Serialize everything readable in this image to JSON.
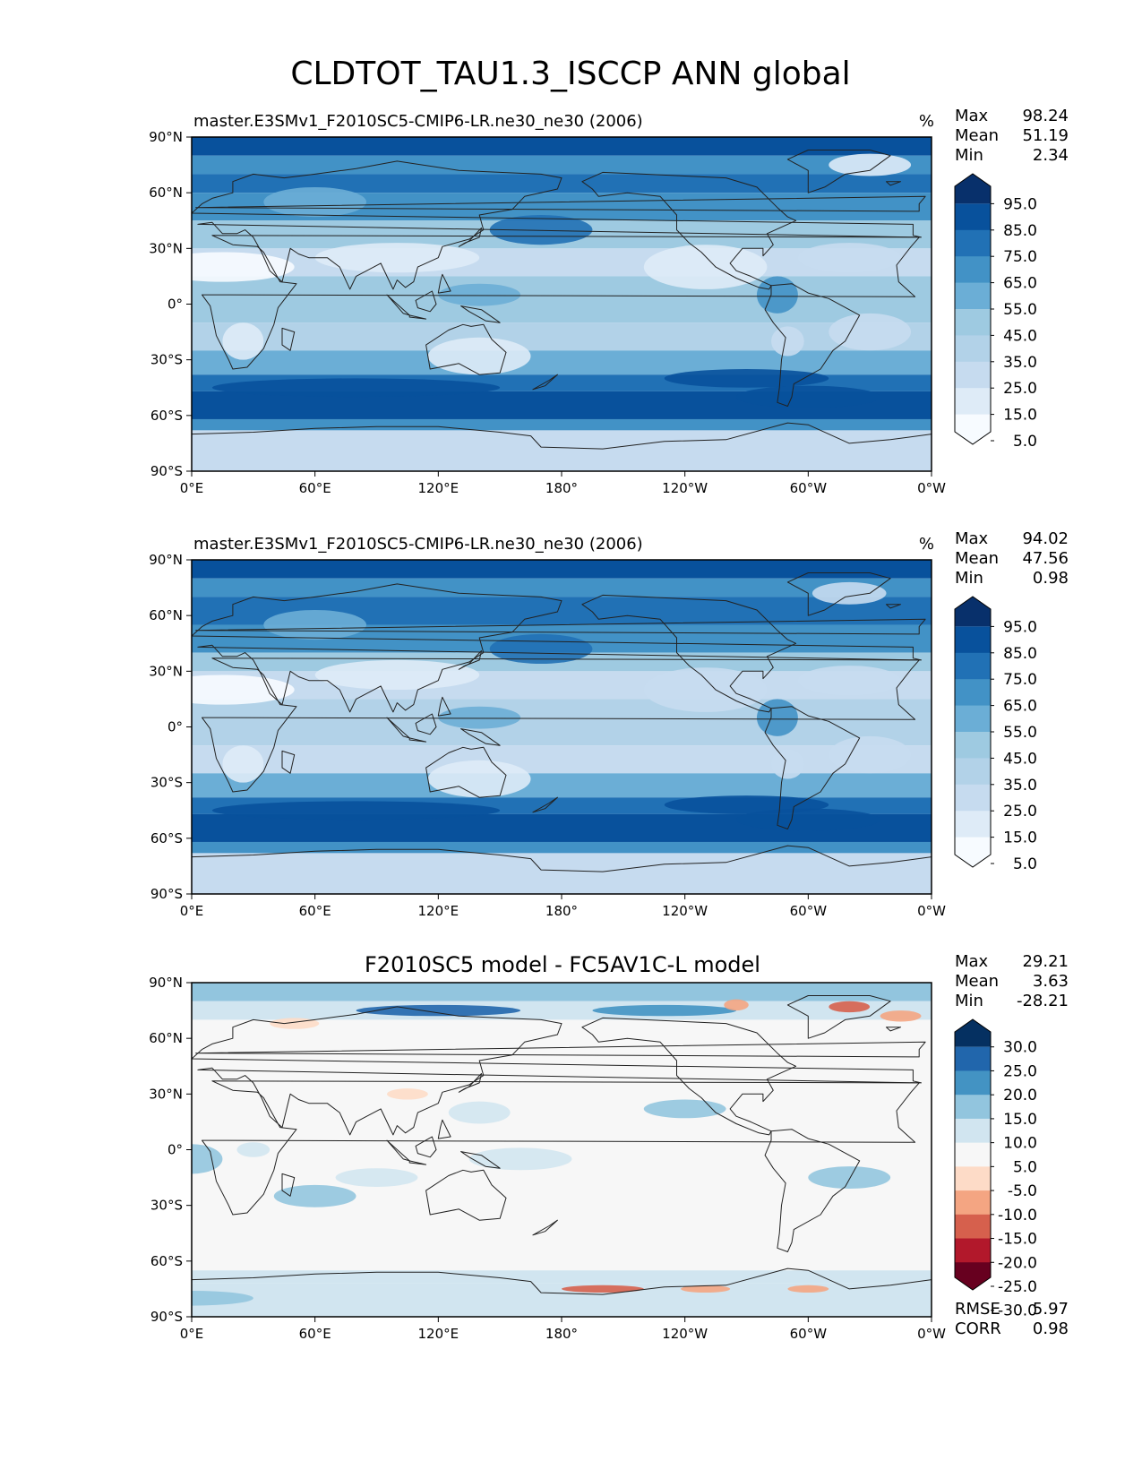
{
  "title": "CLDTOT_TAU1.3_ISCCP ANN global",
  "colors": {
    "blues": [
      "#f7fbff",
      "#deebf7",
      "#c6dbef",
      "#b2d2e8",
      "#9ecae1",
      "#6baed6",
      "#4292c6",
      "#2171b5",
      "#08519c",
      "#08306b"
    ],
    "diverging": [
      "#67001f",
      "#b2182b",
      "#d6604d",
      "#f4a582",
      "#fddbc7",
      "#f7f7f7",
      "#d1e5f0",
      "#92c5de",
      "#4393c3",
      "#2166ac",
      "#053061"
    ],
    "coastline": "#222222",
    "axis": "#000000"
  },
  "lat_ticks": [
    "90°N",
    "60°N",
    "30°N",
    "0°",
    "30°S",
    "60°S",
    "90°S"
  ],
  "lon_ticks": [
    "0°E",
    "60°E",
    "120°E",
    "180°",
    "120°W",
    "60°W",
    "0°W"
  ],
  "panels": [
    {
      "subtitle": "master.E3SMv1_F2010SC5-CMIP6-LR.ne30_ne30 (2006)",
      "units": "%",
      "stats": [
        {
          "label": "Max",
          "value": "98.24"
        },
        {
          "label": "Mean",
          "value": "51.19"
        },
        {
          "label": "Min",
          "value": "2.34"
        }
      ],
      "colorbar_labels": [
        "95.0",
        "85.0",
        "75.0",
        "65.0",
        "55.0",
        "45.0",
        "35.0",
        "25.0",
        "15.0",
        "5.0"
      ],
      "palette": "blues"
    },
    {
      "subtitle": "master.E3SMv1_F2010SC5-CMIP6-LR.ne30_ne30 (2006)",
      "units": "%",
      "stats": [
        {
          "label": "Max",
          "value": "94.02"
        },
        {
          "label": "Mean",
          "value": "47.56"
        },
        {
          "label": "Min",
          "value": "0.98"
        }
      ],
      "colorbar_labels": [
        "95.0",
        "85.0",
        "75.0",
        "65.0",
        "55.0",
        "45.0",
        "35.0",
        "25.0",
        "15.0",
        "5.0"
      ],
      "palette": "blues"
    },
    {
      "subtitle": "F2010SC5 model - FC5AV1C-L model",
      "units": "",
      "stats": [
        {
          "label": "Max",
          "value": "29.21"
        },
        {
          "label": "Mean",
          "value": "3.63"
        },
        {
          "label": "Min",
          "value": "-28.21"
        }
      ],
      "colorbar_labels": [
        "30.0",
        "25.0",
        "20.0",
        "15.0",
        "10.0",
        "5.0",
        "-5.0",
        "-10.0",
        "-15.0",
        "-20.0",
        "-25.0",
        "-30.0"
      ],
      "palette": "diverging",
      "bottom_stats": [
        {
          "label": "RMSE",
          "value": "5.97"
        },
        {
          "label": "CORR",
          "value": "0.98"
        }
      ]
    }
  ]
}
